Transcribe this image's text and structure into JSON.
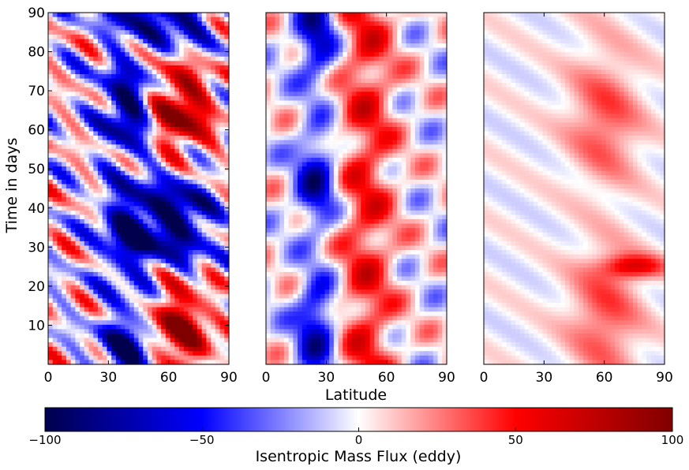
{
  "chart_data": {
    "type": "heatmap",
    "panels": [
      {
        "name": "panel-1",
        "x_range": [
          0,
          90
        ],
        "y_range": [
          0,
          90
        ],
        "x_ticks": [
          "0",
          "30",
          "60",
          "90"
        ],
        "y_ticks": [
          "10",
          "20",
          "30",
          "40",
          "50",
          "60",
          "70",
          "80",
          "90"
        ],
        "intensity": 1.0
      },
      {
        "name": "panel-2",
        "x_range": [
          0,
          90
        ],
        "y_range": [
          0,
          90
        ],
        "x_ticks": [
          "0",
          "30",
          "60",
          "90"
        ],
        "y_ticks": [],
        "intensity": 0.45
      },
      {
        "name": "panel-3",
        "x_range": [
          0,
          90
        ],
        "y_range": [
          0,
          90
        ],
        "x_ticks": [
          "0",
          "30",
          "60",
          "90"
        ],
        "y_ticks": [],
        "intensity": 0.3
      }
    ],
    "ylabel": "Time in days",
    "xlabel": "Latitude",
    "colorbar": {
      "label": "Isentropic Mass Flux (eddy)",
      "range": [
        -100,
        100
      ],
      "ticks": [
        "−100",
        "−50",
        "0",
        "50",
        "100"
      ],
      "colormap": "seismic"
    },
    "colors": {
      "negative_extreme": "#00004d",
      "negative": "#0000ff",
      "zero": "#ffffff",
      "positive": "#ff0000",
      "positive_extreme": "#800000"
    }
  }
}
